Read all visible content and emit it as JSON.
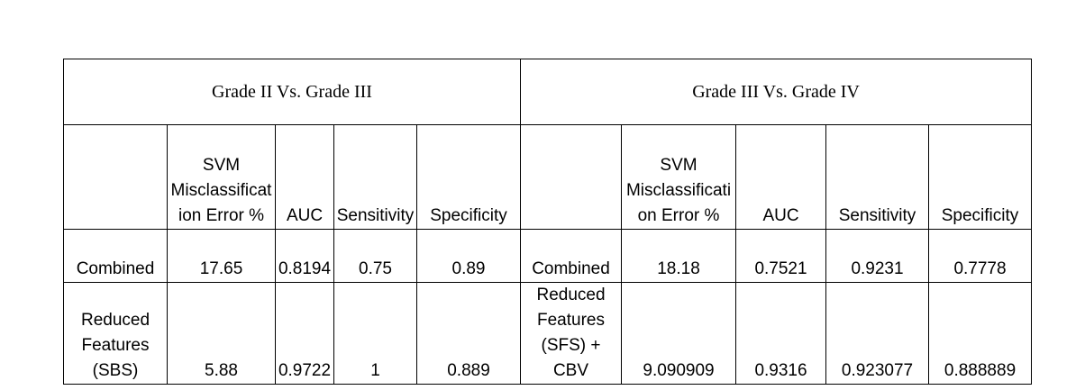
{
  "table": {
    "groups": [
      {
        "title": "Grade II Vs. Grade III",
        "columns": [
          "SVM Misclassification Error %",
          "AUC",
          "Sensitivity",
          "Specificity"
        ]
      },
      {
        "title": "Grade III Vs. Grade IV",
        "columns": [
          "SVM Misclassification Error %",
          "AUC",
          "Sensitivity",
          "Specificity"
        ]
      }
    ],
    "rows": [
      [
        "Combined",
        "17.65",
        "0.8194",
        "0.75",
        "0.89",
        "Combined",
        "18.18",
        "0.7521",
        "0.9231",
        "0.7778"
      ],
      [
        "Reduced Features (SBS)",
        "5.88",
        "0.9722",
        "1",
        "0.889",
        "Reduced Features (SFS) + CBV",
        "9.090909",
        "0.9316",
        "0.923077",
        "0.888889"
      ]
    ]
  }
}
